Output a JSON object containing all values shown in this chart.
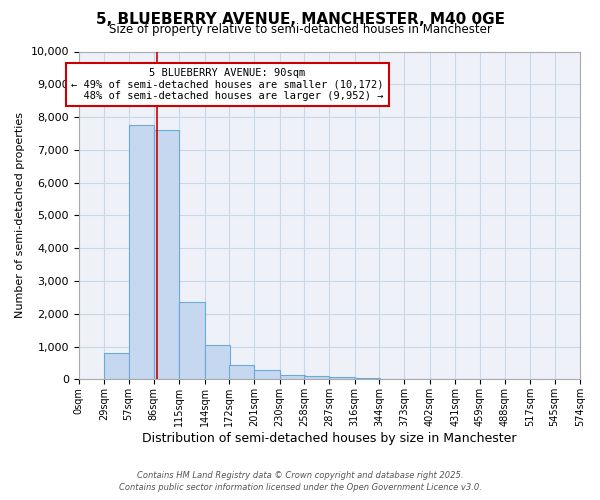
{
  "title": "5, BLUEBERRY AVENUE, MANCHESTER, M40 0GE",
  "subtitle": "Size of property relative to semi-detached houses in Manchester",
  "xlabel": "Distribution of semi-detached houses by size in Manchester",
  "ylabel": "Number of semi-detached properties",
  "bin_labels": [
    "0sqm",
    "29sqm",
    "57sqm",
    "86sqm",
    "115sqm",
    "144sqm",
    "172sqm",
    "201sqm",
    "230sqm",
    "258sqm",
    "287sqm",
    "316sqm",
    "344sqm",
    "373sqm",
    "402sqm",
    "431sqm",
    "459sqm",
    "488sqm",
    "517sqm",
    "545sqm",
    "574sqm"
  ],
  "bin_edges": [
    0,
    29,
    57,
    86,
    115,
    144,
    172,
    201,
    230,
    258,
    287,
    316,
    344,
    373,
    402,
    431,
    459,
    488,
    517,
    545,
    574
  ],
  "bar_heights": [
    0,
    800,
    7750,
    7600,
    2350,
    1050,
    450,
    280,
    125,
    100,
    75,
    30,
    15,
    5,
    2,
    1,
    1,
    0,
    0,
    0
  ],
  "bar_color": "#c5d8f0",
  "bar_edgecolor": "#6aaad4",
  "property_size": 90,
  "property_label": "5 BLUEBERRY AVENUE: 90sqm",
  "pct_smaller": 49,
  "pct_smaller_n": 10172,
  "pct_larger": 48,
  "pct_larger_n": 9952,
  "vline_color": "#cc0000",
  "ylim": [
    0,
    10000
  ],
  "yticks": [
    0,
    1000,
    2000,
    3000,
    4000,
    5000,
    6000,
    7000,
    8000,
    9000,
    10000
  ],
  "annotation_box_color": "#cc0000",
  "footer1": "Contains HM Land Registry data © Crown copyright and database right 2025.",
  "footer2": "Contains public sector information licensed under the Open Government Licence v3.0.",
  "background_color": "#eef2f8",
  "grid_color": "#c8d8ea"
}
